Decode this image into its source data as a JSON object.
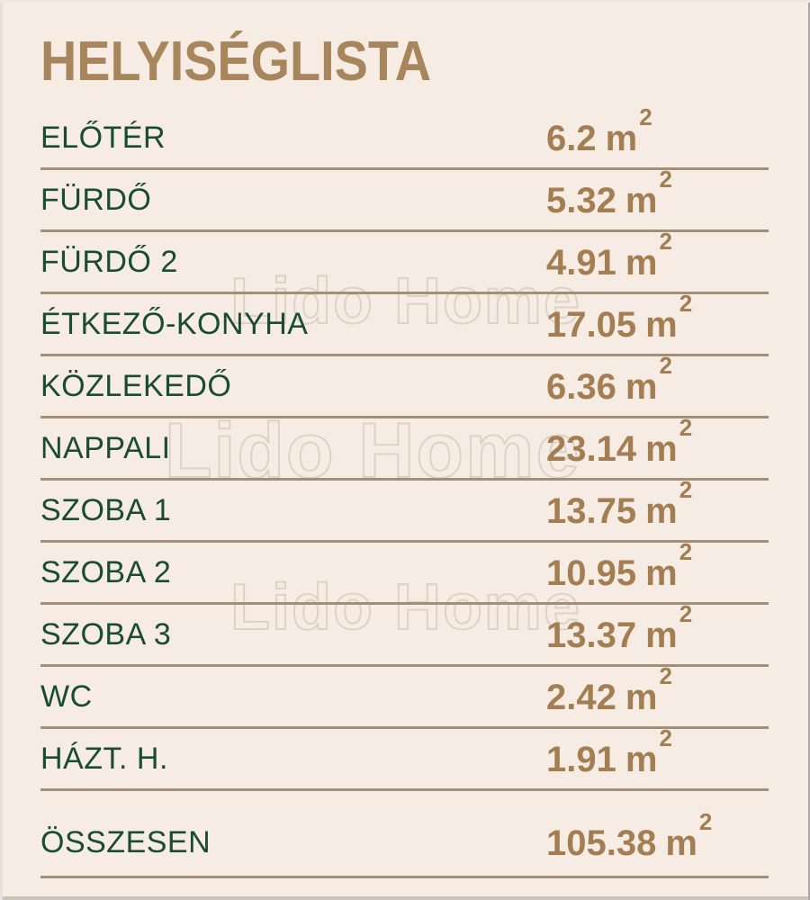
{
  "title": "HELYISÉGLISTA",
  "watermark": {
    "text": "Lido Home"
  },
  "unit": {
    "symbol": "m",
    "exponent": "2"
  },
  "rooms": [
    {
      "name": "ELŐTÉR",
      "area": "6.2"
    },
    {
      "name": "FÜRDŐ",
      "area": "5.32"
    },
    {
      "name": "FÜRDŐ 2",
      "area": "4.91"
    },
    {
      "name": "ÉTKEZŐ-KONYHA",
      "area": "17.05"
    },
    {
      "name": "KÖZLEKEDŐ",
      "area": "6.36"
    },
    {
      "name": "NAPPALI",
      "area": "23.14"
    },
    {
      "name": "SZOBA 1",
      "area": "13.75"
    },
    {
      "name": "SZOBA 2",
      "area": "10.95"
    },
    {
      "name": "SZOBA 3",
      "area": "13.37"
    },
    {
      "name": "WC",
      "area": "2.42"
    },
    {
      "name": "HÁZT. H.",
      "area": "1.91"
    }
  ],
  "total": {
    "name": "ÖSSZESEN",
    "area": "105.38"
  },
  "colors": {
    "background": "#f6ece3",
    "accent_brown": "#a27e52",
    "room_name_green": "#1a4c32",
    "divider": "#a28f7a",
    "watermark_stroke": "#dcd3c6"
  }
}
